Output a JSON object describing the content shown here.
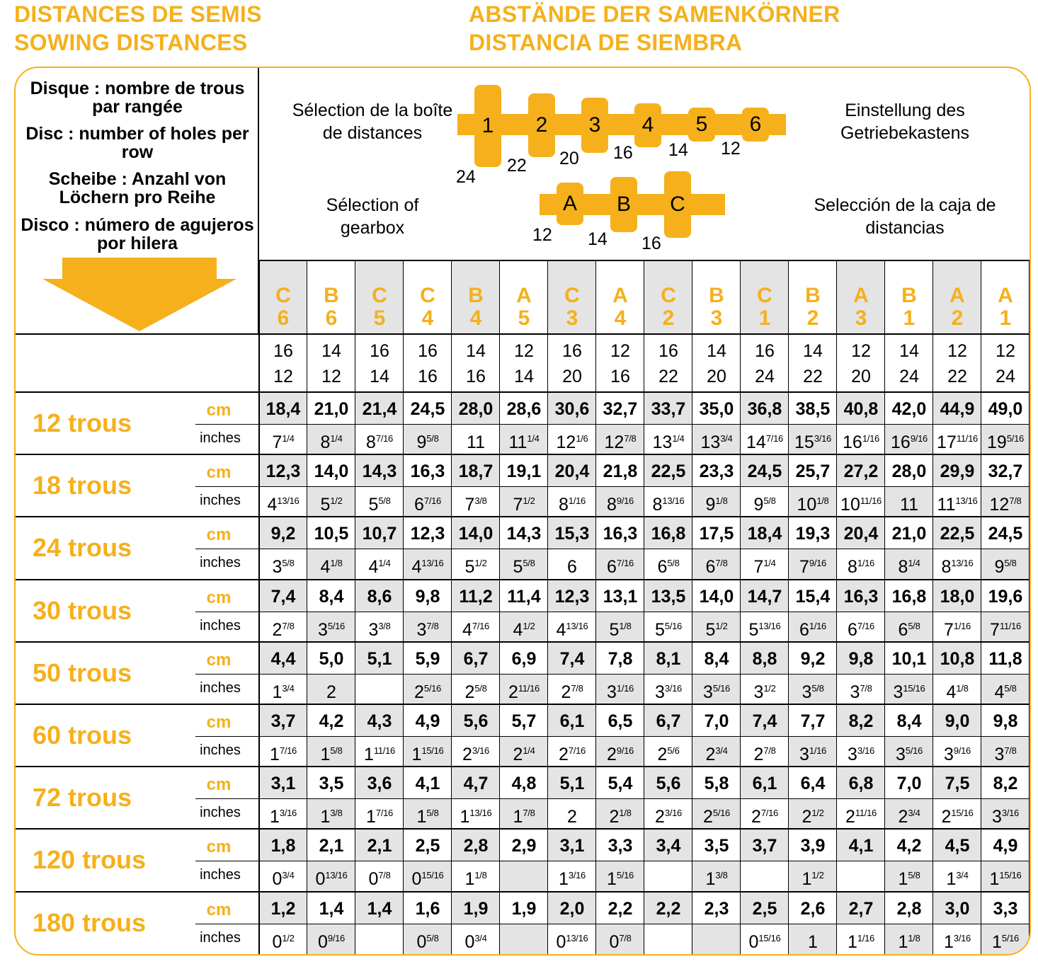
{
  "titles": {
    "left_line1": "DISTANCES DE SEMIS",
    "left_line2": "SOWING DISTANCES",
    "right_line1": "ABSTÄNDE DER SAMENKÖRNER",
    "right_line2": "DISTANCIA DE SIEMBRA"
  },
  "legend": {
    "fr": "Disque : nombre de trous par rangée",
    "en": "Disc : number of holes per row",
    "de": "Scheibe : Anzahl von Löchern pro Reihe",
    "es": "Disco : número de agujeros por hilera"
  },
  "selection": {
    "fr_top": "Sélection de la boîte de distances",
    "de": "Einstellung des Getriebekastens",
    "fr_bottom": "Sélection of gearbox",
    "es": "Selección de la caja de distancias",
    "gear1": {
      "labels": [
        "1",
        "2",
        "3",
        "4",
        "5",
        "6"
      ],
      "teeth": [
        "24",
        "22",
        "20",
        "16",
        "14",
        "12"
      ]
    },
    "gear2": {
      "labels": [
        "A",
        "B",
        "C"
      ],
      "teeth": [
        "12",
        "14",
        "16"
      ]
    }
  },
  "colors": {
    "accent": "#F5B01B",
    "shade": "#E4E4E4"
  },
  "columns": [
    {
      "letter": "C",
      "num": "6",
      "t1": "16",
      "t2": "12"
    },
    {
      "letter": "B",
      "num": "6",
      "t1": "14",
      "t2": "12"
    },
    {
      "letter": "C",
      "num": "5",
      "t1": "16",
      "t2": "14"
    },
    {
      "letter": "C",
      "num": "4",
      "t1": "16",
      "t2": "16"
    },
    {
      "letter": "B",
      "num": "4",
      "t1": "14",
      "t2": "16"
    },
    {
      "letter": "A",
      "num": "5",
      "t1": "12",
      "t2": "14"
    },
    {
      "letter": "C",
      "num": "3",
      "t1": "16",
      "t2": "20"
    },
    {
      "letter": "A",
      "num": "4",
      "t1": "12",
      "t2": "16"
    },
    {
      "letter": "C",
      "num": "2",
      "t1": "16",
      "t2": "22"
    },
    {
      "letter": "B",
      "num": "3",
      "t1": "14",
      "t2": "20"
    },
    {
      "letter": "C",
      "num": "1",
      "t1": "16",
      "t2": "24"
    },
    {
      "letter": "B",
      "num": "2",
      "t1": "14",
      "t2": "22"
    },
    {
      "letter": "A",
      "num": "3",
      "t1": "12",
      "t2": "20"
    },
    {
      "letter": "B",
      "num": "1",
      "t1": "14",
      "t2": "24"
    },
    {
      "letter": "A",
      "num": "2",
      "t1": "12",
      "t2": "22"
    },
    {
      "letter": "A",
      "num": "1",
      "t1": "12",
      "t2": "24"
    }
  ],
  "unit_labels": {
    "cm": "cm",
    "inches": "inches"
  },
  "rows": [
    {
      "label": "12 trous",
      "cm": [
        "18,4",
        "21,0",
        "21,4",
        "24,5",
        "28,0",
        "28,6",
        "30,6",
        "32,7",
        "33,7",
        "35,0",
        "36,8",
        "38,5",
        "40,8",
        "42,0",
        "44,9",
        "49,0"
      ],
      "inches": [
        [
          "7",
          "1/4"
        ],
        [
          "8",
          "1/4"
        ],
        [
          "8",
          "7/16"
        ],
        [
          "9",
          "5/8"
        ],
        [
          "11",
          ""
        ],
        [
          "11",
          "1/4"
        ],
        [
          "12",
          "1/6"
        ],
        [
          "12",
          "7/8"
        ],
        [
          "13",
          "1/4"
        ],
        [
          "13",
          "3/4"
        ],
        [
          "14",
          "7/16"
        ],
        [
          "15",
          "3/16"
        ],
        [
          "16",
          "1/16"
        ],
        [
          "16",
          "9/16"
        ],
        [
          "17",
          "11/16"
        ],
        [
          "19",
          "5/16"
        ]
      ]
    },
    {
      "label": "18 trous",
      "cm": [
        "12,3",
        "14,0",
        "14,3",
        "16,3",
        "18,7",
        "19,1",
        "20,4",
        "21,8",
        "22,5",
        "23,3",
        "24,5",
        "25,7",
        "27,2",
        "28,0",
        "29,9",
        "32,7"
      ],
      "inches": [
        [
          "4",
          "13/16"
        ],
        [
          "5",
          "1/2"
        ],
        [
          "5",
          "5/8"
        ],
        [
          "6",
          "7/16"
        ],
        [
          "7",
          "3/8"
        ],
        [
          "7",
          "1/2"
        ],
        [
          "8",
          "1/16"
        ],
        [
          "8",
          "9/16"
        ],
        [
          "8",
          "13/16"
        ],
        [
          "9",
          "1/8"
        ],
        [
          "9",
          "5/8"
        ],
        [
          "10",
          "1/8"
        ],
        [
          "10",
          "11/16"
        ],
        [
          "11",
          ""
        ],
        [
          "11",
          "13/16"
        ],
        [
          "12",
          "7/8"
        ]
      ]
    },
    {
      "label": "24 trous",
      "cm": [
        "9,2",
        "10,5",
        "10,7",
        "12,3",
        "14,0",
        "14,3",
        "15,3",
        "16,3",
        "16,8",
        "17,5",
        "18,4",
        "19,3",
        "20,4",
        "21,0",
        "22,5",
        "24,5"
      ],
      "inches": [
        [
          "3",
          "5/8"
        ],
        [
          "4",
          "1/8"
        ],
        [
          "4",
          "1/4"
        ],
        [
          "4",
          "13/16"
        ],
        [
          "5",
          "1/2"
        ],
        [
          "5",
          "5/8"
        ],
        [
          "6",
          ""
        ],
        [
          "6",
          "7/16"
        ],
        [
          "6",
          "5/8"
        ],
        [
          "6",
          "7/8"
        ],
        [
          "7",
          "1/4"
        ],
        [
          "7",
          "9/16"
        ],
        [
          "8",
          "1/16"
        ],
        [
          "8",
          "1/4"
        ],
        [
          "8",
          "13/16"
        ],
        [
          "9",
          "5/8"
        ]
      ]
    },
    {
      "label": "30 trous",
      "cm": [
        "7,4",
        "8,4",
        "8,6",
        "9,8",
        "11,2",
        "11,4",
        "12,3",
        "13,1",
        "13,5",
        "14,0",
        "14,7",
        "15,4",
        "16,3",
        "16,8",
        "18,0",
        "19,6"
      ],
      "inches": [
        [
          "2",
          "7/8"
        ],
        [
          "3",
          "5/16"
        ],
        [
          "3",
          "3/8"
        ],
        [
          "3",
          "7/8"
        ],
        [
          "4",
          "7/16"
        ],
        [
          "4",
          "1/2"
        ],
        [
          "4",
          "13/16"
        ],
        [
          "5",
          "1/8"
        ],
        [
          "5",
          "5/16"
        ],
        [
          "5",
          "1/2"
        ],
        [
          "5",
          "13/16"
        ],
        [
          "6",
          "1/16"
        ],
        [
          "6",
          "7/16"
        ],
        [
          "6",
          "5/8"
        ],
        [
          "7",
          "1/16"
        ],
        [
          "7",
          "11/16"
        ]
      ]
    },
    {
      "label": "50 trous",
      "cm": [
        "4,4",
        "5,0",
        "5,1",
        "5,9",
        "6,7",
        "6,9",
        "7,4",
        "7,8",
        "8,1",
        "8,4",
        "8,8",
        "9,2",
        "9,8",
        "10,1",
        "10,8",
        "11,8"
      ],
      "inches": [
        [
          "1",
          "3/4"
        ],
        [
          "2",
          ""
        ],
        [
          "",
          ""
        ],
        [
          "2",
          "5/16"
        ],
        [
          "2",
          "5/8"
        ],
        [
          "2",
          "11/16"
        ],
        [
          "2",
          "7/8"
        ],
        [
          "3",
          "1/16"
        ],
        [
          "3",
          "3/16"
        ],
        [
          "3",
          "5/16"
        ],
        [
          "3",
          "1/2"
        ],
        [
          "3",
          "5/8"
        ],
        [
          "3",
          "7/8"
        ],
        [
          "3",
          "15/16"
        ],
        [
          "4",
          "1/8"
        ],
        [
          "4",
          "5/8"
        ]
      ]
    },
    {
      "label": "60 trous",
      "cm": [
        "3,7",
        "4,2",
        "4,3",
        "4,9",
        "5,6",
        "5,7",
        "6,1",
        "6,5",
        "6,7",
        "7,0",
        "7,4",
        "7,7",
        "8,2",
        "8,4",
        "9,0",
        "9,8"
      ],
      "inches": [
        [
          "1",
          "7/16"
        ],
        [
          "1",
          "5/8"
        ],
        [
          "1",
          "11/16"
        ],
        [
          "1",
          "15/16"
        ],
        [
          "2",
          "3/16"
        ],
        [
          "2",
          "1/4"
        ],
        [
          "2",
          "7/16"
        ],
        [
          "2",
          "9/16"
        ],
        [
          "2",
          "5/6"
        ],
        [
          "2",
          "3/4"
        ],
        [
          "2",
          "7/8"
        ],
        [
          "3",
          "1/16"
        ],
        [
          "3",
          "3/16"
        ],
        [
          "3",
          "5/16"
        ],
        [
          "3",
          "9/16"
        ],
        [
          "3",
          "7/8"
        ]
      ]
    },
    {
      "label": "72 trous",
      "cm": [
        "3,1",
        "3,5",
        "3,6",
        "4,1",
        "4,7",
        "4,8",
        "5,1",
        "5,4",
        "5,6",
        "5,8",
        "6,1",
        "6,4",
        "6,8",
        "7,0",
        "7,5",
        "8,2"
      ],
      "inches": [
        [
          "1",
          "3/16"
        ],
        [
          "1",
          "3/8"
        ],
        [
          "1",
          "7/16"
        ],
        [
          "1",
          "5/8"
        ],
        [
          "1",
          "13/16"
        ],
        [
          "1",
          "7/8"
        ],
        [
          "2",
          ""
        ],
        [
          "2",
          "1/8"
        ],
        [
          "2",
          "3/16"
        ],
        [
          "2",
          "5/16"
        ],
        [
          "2",
          "7/16"
        ],
        [
          "2",
          "1/2"
        ],
        [
          "2",
          "11/16"
        ],
        [
          "2",
          "3/4"
        ],
        [
          "2",
          "15/16"
        ],
        [
          "3",
          "3/16"
        ]
      ]
    },
    {
      "label": "120 trous",
      "cm": [
        "1,8",
        "2,1",
        "2,1",
        "2,5",
        "2,8",
        "2,9",
        "3,1",
        "3,3",
        "3,4",
        "3,5",
        "3,7",
        "3,9",
        "4,1",
        "4,2",
        "4,5",
        "4,9"
      ],
      "inches": [
        [
          "0",
          "3/4"
        ],
        [
          "0",
          "13/16"
        ],
        [
          "0",
          "7/8"
        ],
        [
          "0",
          "15/16"
        ],
        [
          "1",
          "1/8"
        ],
        [
          "",
          ""
        ],
        [
          "1",
          "3/16"
        ],
        [
          "1",
          "5/16"
        ],
        [
          "",
          ""
        ],
        [
          "1",
          "3/8"
        ],
        [
          "",
          ""
        ],
        [
          "1",
          "1/2"
        ],
        [
          "",
          ""
        ],
        [
          "1",
          "5/8"
        ],
        [
          "1",
          "3/4"
        ],
        [
          "1",
          "15/16"
        ]
      ]
    },
    {
      "label": "180 trous",
      "cm": [
        "1,2",
        "1,4",
        "1,4",
        "1,6",
        "1,9",
        "1,9",
        "2,0",
        "2,2",
        "2,2",
        "2,3",
        "2,5",
        "2,6",
        "2,7",
        "2,8",
        "3,0",
        "3,3"
      ],
      "inches": [
        [
          "0",
          "1/2"
        ],
        [
          "0",
          "9/16"
        ],
        [
          "",
          ""
        ],
        [
          "0",
          "5/8"
        ],
        [
          "0",
          "3/4"
        ],
        [
          "",
          ""
        ],
        [
          "0",
          "13/16"
        ],
        [
          "0",
          "7/8"
        ],
        [
          "",
          ""
        ],
        [
          "",
          ""
        ],
        [
          "0",
          "15/16"
        ],
        [
          "1",
          ""
        ],
        [
          "1",
          "1/16"
        ],
        [
          "1",
          "1/8"
        ],
        [
          "1",
          "3/16"
        ],
        [
          "1",
          "5/16"
        ]
      ]
    }
  ]
}
